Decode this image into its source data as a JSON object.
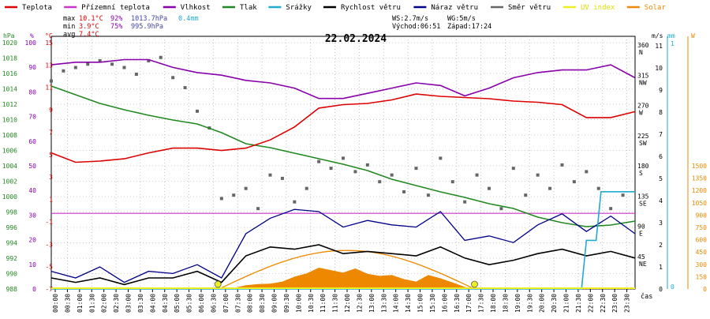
{
  "legend": [
    {
      "label": "Teplota",
      "color": "#dd0000"
    },
    {
      "label": "Přízemní teplota",
      "color": "#cc33cc"
    },
    {
      "label": "Vlhkost",
      "color": "#8800aa"
    },
    {
      "label": "Tlak",
      "color": "#228822"
    },
    {
      "label": "Srážky",
      "color": "#22aacc"
    },
    {
      "label": "Rychlost větru",
      "color": "#000000"
    },
    {
      "label": "Náraz větru",
      "color": "#000088"
    },
    {
      "label": "Směr větru",
      "color": "#666666"
    },
    {
      "label": "UV index",
      "color": "#eeee22"
    },
    {
      "label": "Solar",
      "color": "#ee8800"
    }
  ],
  "stats": {
    "rows": [
      {
        "label": "max",
        "temp": "10.1°C",
        "hum": "92%",
        "press": "1013.7hPa",
        "rain": "0.4mm"
      },
      {
        "label": "min",
        "temp": "3.9°C",
        "hum": "75%",
        "press": "995.9hPa",
        "rain": ""
      },
      {
        "label": "avg",
        "temp": "7.4°C",
        "hum": "",
        "press": "",
        "rain": ""
      }
    ]
  },
  "wind_info": {
    "ws": "WS:2.7m/s",
    "wg": "WG:5m/s",
    "sunrise": "Východ:06:51",
    "sunset": "Západ:17:24"
  },
  "date_title": "22.02.2024",
  "time_axis_label": "čas",
  "colors": {
    "temp": "#dd0000",
    "humidity": "#8800aa",
    "pressure": "#228822",
    "rain": "#22aacc",
    "wind": "#000000",
    "gust": "#000088",
    "dir": "#666666",
    "uv": "#eeee22",
    "solar": "#ee8800",
    "ground": "#cc33cc",
    "grid": "#999999"
  },
  "chart_data": {
    "type": "line",
    "title": "22.02.2024",
    "x_ticks": [
      "00:00",
      "00:30",
      "01:00",
      "01:30",
      "02:00",
      "02:30",
      "03:00",
      "03:30",
      "04:00",
      "04:30",
      "05:00",
      "05:30",
      "06:00",
      "06:30",
      "07:00",
      "07:30",
      "08:00",
      "08:30",
      "09:00",
      "09:30",
      "10:00",
      "10:30",
      "11:00",
      "11:30",
      "12:00",
      "12:30",
      "13:00",
      "13:30",
      "14:00",
      "14:30",
      "15:00",
      "15:30",
      "16:00",
      "16:30",
      "17:00",
      "17:30",
      "18:00",
      "18:30",
      "19:00",
      "19:30",
      "20:00",
      "20:30",
      "21:00",
      "21:30",
      "22:00",
      "22:30",
      "23:00",
      "23:30"
    ],
    "axes": {
      "pressure": {
        "label": "hPa",
        "ticks": [
          "1020",
          "1018",
          "1016",
          "1014",
          "1012",
          "1010",
          "1008",
          "1006",
          "1004",
          "1002",
          "1000",
          "998",
          "996",
          "994",
          "992",
          "990",
          "988"
        ],
        "range": [
          988,
          1020
        ]
      },
      "humidity": {
        "label": "%",
        "ticks": [
          "100",
          "90",
          "80",
          "70",
          "60",
          "50",
          "40",
          "30",
          "20",
          "10",
          "0"
        ],
        "range": [
          0,
          100
        ]
      },
      "temperature": {
        "label": "°C",
        "ticks": [
          "15",
          "13",
          "11",
          "9",
          "7",
          "5",
          "3",
          "1",
          "-1",
          "-3",
          "-5",
          "-7"
        ],
        "range": [
          -7,
          15
        ]
      },
      "wind_dir": {
        "ticks": [
          "360",
          "315",
          "270",
          "225",
          "180",
          "135",
          "90",
          "45"
        ],
        "dirs": [
          "N",
          "NW",
          "W",
          "SW",
          "S",
          "SE",
          "E",
          "NE"
        ]
      },
      "wind_speed": {
        "label": "m/s",
        "ticks": [
          "11",
          "10",
          "9",
          "8",
          "7",
          "6",
          "5",
          "4",
          "3",
          "2",
          "1",
          "0"
        ],
        "range": [
          0,
          11
        ]
      },
      "rain": {
        "label": "mm",
        "ticks": [
          "1",
          "0"
        ]
      },
      "solar": {
        "label": "W",
        "ticks": [
          "1500",
          "1350",
          "1200",
          "1050",
          "900",
          "750",
          "600",
          "450",
          "300",
          "150",
          "0"
        ],
        "range": [
          0,
          1500
        ]
      }
    },
    "series": [
      {
        "name": "Teplota",
        "unit": "°C",
        "x": [
          0,
          1,
          2,
          3,
          4,
          5,
          6,
          7,
          8,
          9,
          10,
          11,
          12,
          13,
          14,
          15,
          16,
          17,
          18,
          19,
          20,
          21,
          22,
          23,
          24
        ],
        "values": [
          5.1,
          4.3,
          4.4,
          4.6,
          5.1,
          5.5,
          5.5,
          5.3,
          5.5,
          6.2,
          7.3,
          8.9,
          9.2,
          9.3,
          9.6,
          10.1,
          9.9,
          9.8,
          9.7,
          9.5,
          9.4,
          9.2,
          8.1,
          8.1,
          8.6
        ]
      },
      {
        "name": "Vlhkost",
        "unit": "%",
        "x": [
          0,
          1,
          2,
          3,
          4,
          5,
          6,
          7,
          8,
          9,
          10,
          11,
          12,
          13,
          14,
          15,
          16,
          17,
          18,
          19,
          20,
          21,
          22,
          23,
          24
        ],
        "values": [
          89,
          90,
          90,
          91,
          91,
          88,
          86,
          85,
          83,
          82,
          80,
          76,
          76,
          78,
          80,
          82,
          81,
          77,
          80,
          84,
          86,
          87,
          87,
          89,
          84
        ]
      },
      {
        "name": "Tlak",
        "unit": "hPa",
        "x": [
          0,
          1,
          2,
          3,
          4,
          5,
          6,
          7,
          8,
          9,
          10,
          11,
          12,
          13,
          14,
          15,
          16,
          17,
          18,
          19,
          20,
          21,
          22,
          23,
          24
        ],
        "values": [
          1013.7,
          1012.6,
          1011.5,
          1010.7,
          1010.0,
          1009.4,
          1008.9,
          1007.8,
          1006.4,
          1005.9,
          1005.2,
          1004.5,
          1003.8,
          1003.0,
          1001.9,
          1001.1,
          1000.3,
          999.6,
          998.8,
          998.2,
          997.1,
          996.4,
          995.9,
          996.1,
          996.6
        ]
      },
      {
        "name": "Rychlost větru",
        "unit": "m/s",
        "x": [
          0,
          1,
          2,
          3,
          4,
          5,
          6,
          7,
          8,
          9,
          10,
          11,
          12,
          13,
          14,
          15,
          16,
          17,
          18,
          19,
          20,
          21,
          22,
          23,
          24
        ],
        "values": [
          0.5,
          0.3,
          0.5,
          0.2,
          0.5,
          0.5,
          0.8,
          0.3,
          1.5,
          1.9,
          1.8,
          2.0,
          1.6,
          1.7,
          1.6,
          1.5,
          1.9,
          1.4,
          1.1,
          1.3,
          1.6,
          1.8,
          1.5,
          1.7,
          1.4
        ]
      },
      {
        "name": "Náraz větru",
        "unit": "m/s",
        "x": [
          0,
          1,
          2,
          3,
          4,
          5,
          6,
          7,
          8,
          9,
          10,
          11,
          12,
          13,
          14,
          15,
          16,
          17,
          18,
          19,
          20,
          21,
          22,
          23,
          24
        ],
        "values": [
          0.8,
          0.5,
          1.0,
          0.3,
          0.8,
          0.7,
          1.1,
          0.5,
          2.5,
          3.2,
          3.6,
          3.5,
          2.8,
          3.1,
          2.9,
          2.8,
          3.5,
          2.2,
          2.4,
          2.1,
          2.9,
          3.4,
          2.6,
          3.3,
          2.5
        ]
      },
      {
        "name": "Srážky",
        "unit": "mm",
        "x": [
          0,
          21.8,
          22.0,
          22.4,
          22.6,
          23.0,
          23.5,
          24
        ],
        "values": [
          0,
          0,
          0.2,
          0.2,
          0.4,
          0.4,
          0.4,
          0.4
        ]
      },
      {
        "name": "Solar",
        "unit": "W",
        "x": [
          6.9,
          7.5,
          8,
          8.5,
          9,
          9.5,
          10,
          10.5,
          11,
          11.5,
          12,
          12.5,
          13,
          13.5,
          14,
          14.5,
          15,
          15.5,
          16,
          16.5,
          17,
          17.4
        ],
        "values": [
          0,
          12,
          45,
          60,
          65,
          90,
          150,
          190,
          260,
          230,
          200,
          250,
          185,
          160,
          170,
          120,
          90,
          170,
          130,
          80,
          25,
          0
        ]
      },
      {
        "name": "Směr větru",
        "unit": "°",
        "x": [
          0,
          0.5,
          1,
          1.5,
          2,
          2.5,
          3,
          3.5,
          4,
          4.5,
          5,
          5.5,
          6,
          6.5,
          7,
          7.5,
          8,
          8.5,
          9,
          9.5,
          10,
          10.5,
          11,
          11.5,
          12,
          12.5,
          13,
          13.5,
          14,
          14.5,
          15,
          15.5,
          16,
          16.5,
          17,
          17.5,
          18,
          18.5,
          19,
          19.5,
          20,
          20.5,
          21,
          21.5,
          22,
          22.5,
          23,
          23.5
        ],
        "values": [
          310,
          325,
          330,
          335,
          340,
          335,
          330,
          320,
          340,
          345,
          315,
          300,
          265,
          240,
          135,
          140,
          150,
          120,
          170,
          165,
          130,
          150,
          190,
          180,
          195,
          175,
          185,
          160,
          170,
          145,
          180,
          140,
          195,
          160,
          130,
          170,
          150,
          120,
          180,
          140,
          170,
          150,
          185,
          160,
          175,
          150,
          120,
          140
        ]
      }
    ],
    "uv_markers": [
      "06:51",
      "17:24"
    ],
    "ground_temp_line": 0
  }
}
